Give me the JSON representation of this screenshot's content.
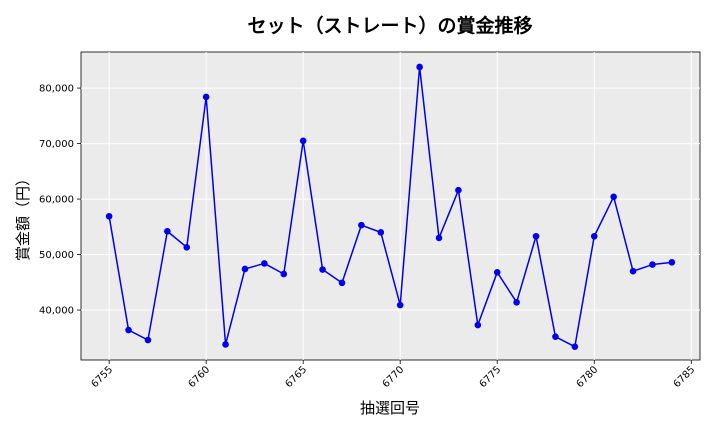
{
  "chart_data": {
    "type": "line",
    "title": "セット（ストレート）の賞金推移",
    "xlabel": "抽選回号",
    "ylabel": "賞金額（円）",
    "xlim": [
      6753.55,
      6785.45
    ],
    "ylim": [
      31000,
      86500
    ],
    "x_ticks": [
      6755,
      6760,
      6765,
      6770,
      6775,
      6780,
      6785
    ],
    "y_ticks": [
      40000,
      50000,
      60000,
      70000,
      80000
    ],
    "y_tick_labels": [
      "40,000",
      "50,000",
      "60,000",
      "70,000",
      "80,000"
    ],
    "grid": true,
    "series": [
      {
        "color": "#0000ee",
        "x": [
          6755,
          6756,
          6757,
          6758,
          6759,
          6760,
          6761,
          6762,
          6763,
          6764,
          6765,
          6766,
          6767,
          6768,
          6769,
          6770,
          6771,
          6772,
          6773,
          6774,
          6775,
          6776,
          6777,
          6778,
          6779,
          6780,
          6781,
          6782,
          6783,
          6784
        ],
        "values": [
          56900,
          36400,
          34600,
          54200,
          51300,
          78400,
          33800,
          47400,
          48400,
          46500,
          70500,
          47300,
          44900,
          55300,
          54000,
          40900,
          83800,
          53000,
          61600,
          37300,
          46800,
          41400,
          53300,
          35200,
          33400,
          53300,
          60400,
          47000,
          48200,
          48600
        ]
      }
    ]
  }
}
